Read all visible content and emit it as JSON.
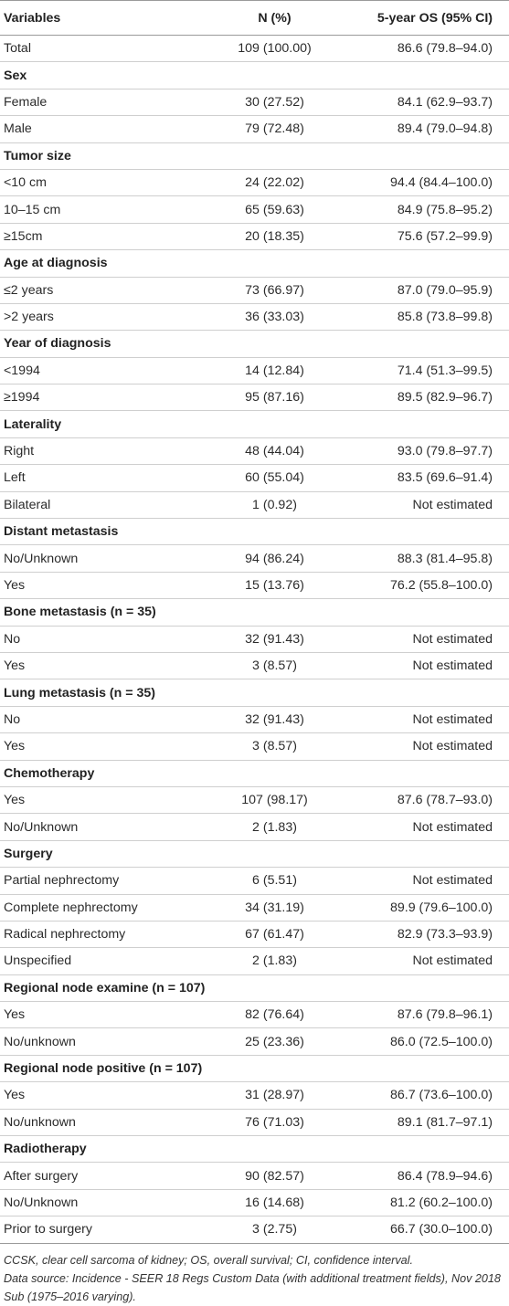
{
  "headers": [
    "Variables",
    "N (%)",
    "5-year OS (95% CI)"
  ],
  "rows": [
    {
      "type": "data",
      "label": "Total",
      "n": "109 (100.00)",
      "os": "86.6 (79.8–94.0)"
    },
    {
      "type": "section",
      "label": "Sex"
    },
    {
      "type": "data",
      "label": "Female",
      "n": "30 (27.52)",
      "os": "84.1 (62.9–93.7)"
    },
    {
      "type": "data",
      "label": "Male",
      "n": "79 (72.48)",
      "os": "89.4 (79.0–94.8)"
    },
    {
      "type": "section",
      "label": "Tumor size"
    },
    {
      "type": "data",
      "label": "<10 cm",
      "n": "24 (22.02)",
      "os": "94.4 (84.4–100.0)"
    },
    {
      "type": "data",
      "label": "10–15 cm",
      "n": "65 (59.63)",
      "os": "84.9 (75.8–95.2)"
    },
    {
      "type": "data",
      "label": "≥15cm",
      "n": "20 (18.35)",
      "os": "75.6 (57.2–99.9)"
    },
    {
      "type": "section",
      "label": "Age at diagnosis"
    },
    {
      "type": "data",
      "label": "≤2 years",
      "n": "73 (66.97)",
      "os": "87.0 (79.0–95.9)"
    },
    {
      "type": "data",
      "label": ">2 years",
      "n": "36 (33.03)",
      "os": "85.8 (73.8–99.8)"
    },
    {
      "type": "section",
      "label": "Year of diagnosis"
    },
    {
      "type": "data",
      "label": "<1994",
      "n": "14 (12.84)",
      "os": "71.4 (51.3–99.5)"
    },
    {
      "type": "data",
      "label": "≥1994",
      "n": "95 (87.16)",
      "os": "89.5 (82.9–96.7)"
    },
    {
      "type": "section",
      "label": "Laterality"
    },
    {
      "type": "data",
      "label": "Right",
      "n": "48 (44.04)",
      "os": "93.0 (79.8–97.7)"
    },
    {
      "type": "data",
      "label": "Left",
      "n": "60 (55.04)",
      "os": "83.5 (69.6–91.4)"
    },
    {
      "type": "data",
      "label": "Bilateral",
      "n": "1 (0.92)",
      "os": "Not estimated"
    },
    {
      "type": "section",
      "label": "Distant metastasis"
    },
    {
      "type": "data",
      "label": "No/Unknown",
      "n": "94 (86.24)",
      "os": "88.3 (81.4–95.8)"
    },
    {
      "type": "data",
      "label": "Yes",
      "n": "15 (13.76)",
      "os": "76.2 (55.8–100.0)"
    },
    {
      "type": "section",
      "label": "Bone metastasis (n = 35)"
    },
    {
      "type": "data",
      "label": "No",
      "n": "32 (91.43)",
      "os": "Not estimated"
    },
    {
      "type": "data",
      "label": "Yes",
      "n": "3 (8.57)",
      "os": "Not estimated"
    },
    {
      "type": "section",
      "label": "Lung metastasis (n = 35)"
    },
    {
      "type": "data",
      "label": "No",
      "n": "32 (91.43)",
      "os": "Not estimated"
    },
    {
      "type": "data",
      "label": "Yes",
      "n": "3 (8.57)",
      "os": "Not estimated"
    },
    {
      "type": "section",
      "label": "Chemotherapy"
    },
    {
      "type": "data",
      "label": "Yes",
      "n": "107 (98.17)",
      "os": "87.6 (78.7–93.0)"
    },
    {
      "type": "data",
      "label": "No/Unknown",
      "n": "2 (1.83)",
      "os": "Not estimated"
    },
    {
      "type": "section",
      "label": "Surgery"
    },
    {
      "type": "data",
      "label": "Partial nephrectomy",
      "n": "6 (5.51)",
      "os": "Not estimated"
    },
    {
      "type": "data",
      "label": "Complete nephrectomy",
      "n": "34 (31.19)",
      "os": "89.9 (79.6–100.0)"
    },
    {
      "type": "data",
      "label": "Radical nephrectomy",
      "n": "67 (61.47)",
      "os": "82.9 (73.3–93.9)"
    },
    {
      "type": "data",
      "label": "Unspecified",
      "n": "2 (1.83)",
      "os": "Not estimated"
    },
    {
      "type": "section",
      "label": "Regional node examine (n = 107)"
    },
    {
      "type": "data",
      "label": "Yes",
      "n": "82 (76.64)",
      "os": "87.6 (79.8–96.1)"
    },
    {
      "type": "data",
      "label": "No/unknown",
      "n": "25 (23.36)",
      "os": "86.0 (72.5–100.0)"
    },
    {
      "type": "section",
      "label": "Regional node positive (n = 107)"
    },
    {
      "type": "data",
      "label": "Yes",
      "n": "31 (28.97)",
      "os": "86.7 (73.6–100.0)"
    },
    {
      "type": "data",
      "label": "No/unknown",
      "n": "76 (71.03)",
      "os": "89.1 (81.7–97.1)"
    },
    {
      "type": "section",
      "label": "Radiotherapy"
    },
    {
      "type": "data",
      "label": "After surgery",
      "n": "90 (82.57)",
      "os": "86.4 (78.9–94.6)"
    },
    {
      "type": "data",
      "label": "No/Unknown",
      "n": "16 (14.68)",
      "os": "81.2 (60.2–100.0)"
    },
    {
      "type": "data",
      "label": "Prior to surgery",
      "n": "3 (2.75)",
      "os": "66.7 (30.0–100.0)"
    }
  ],
  "footnotes": [
    "CCSK, clear cell sarcoma of kidney; OS, overall survival; CI, confidence interval.",
    "Data source: Incidence - SEER 18 Regs Custom Data (with additional treatment fields), Nov 2018 Sub (1975–2016 varying)."
  ]
}
